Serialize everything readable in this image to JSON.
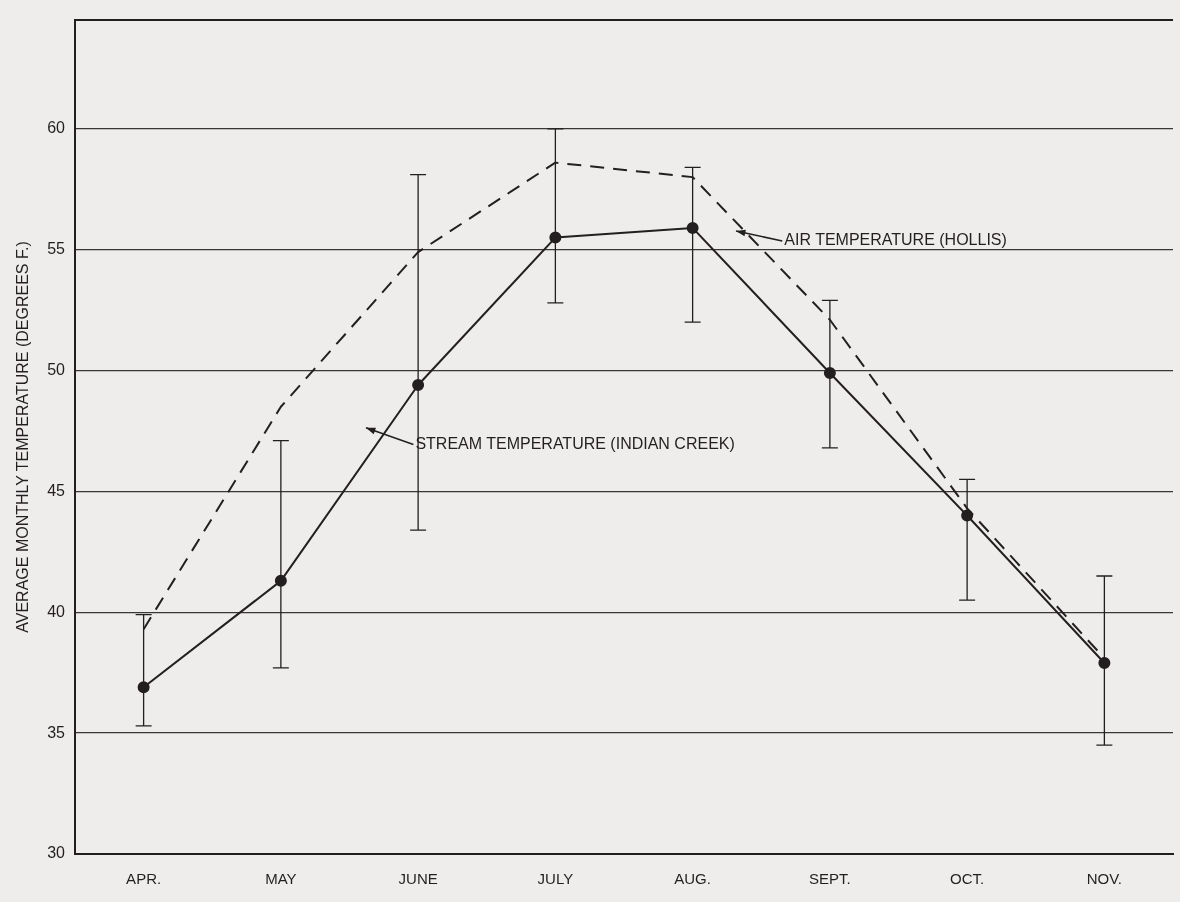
{
  "chart_data": {
    "type": "line",
    "ylabel": "AVERAGE MONTHLY TEMPERATURE (DEGREES F.)",
    "categories": [
      "APR.",
      "MAY",
      "JUNE",
      "JULY",
      "AUG.",
      "SEPT.",
      "OCT.",
      "NOV."
    ],
    "series": [
      {
        "color": "#231f20",
        "marker": "circle",
        "line_style": "solid",
        "values": [
          36.9,
          41.3,
          49.4,
          55.5,
          55.9,
          49.9,
          44,
          37.9
        ],
        "errors": [
          [
            35.3,
            39.9
          ],
          [
            37.7,
            47.1
          ],
          [
            43.4,
            58.1
          ],
          [
            52.8,
            60
          ],
          [
            52,
            58.4
          ],
          [
            46.8,
            52.9
          ],
          [
            40.5,
            45.5
          ],
          [
            34.5,
            41.5
          ]
        ]
      },
      {
        "color": "#231f20",
        "marker": "none",
        "line_style": "dashed",
        "values": [
          39.3,
          48.5,
          54.9,
          58.6,
          58,
          52.1,
          44.3,
          38.1
        ]
      }
    ],
    "ylim": [
      30,
      64.5
    ],
    "yticks": [
      30,
      35,
      40,
      45,
      50,
      55,
      60
    ],
    "grid": "y",
    "legend": false,
    "annotations": [
      "STREAM TEMPERATURE (INDIAN CREEK)",
      "AIR TEMPERATURE (HOLLIS)"
    ]
  }
}
